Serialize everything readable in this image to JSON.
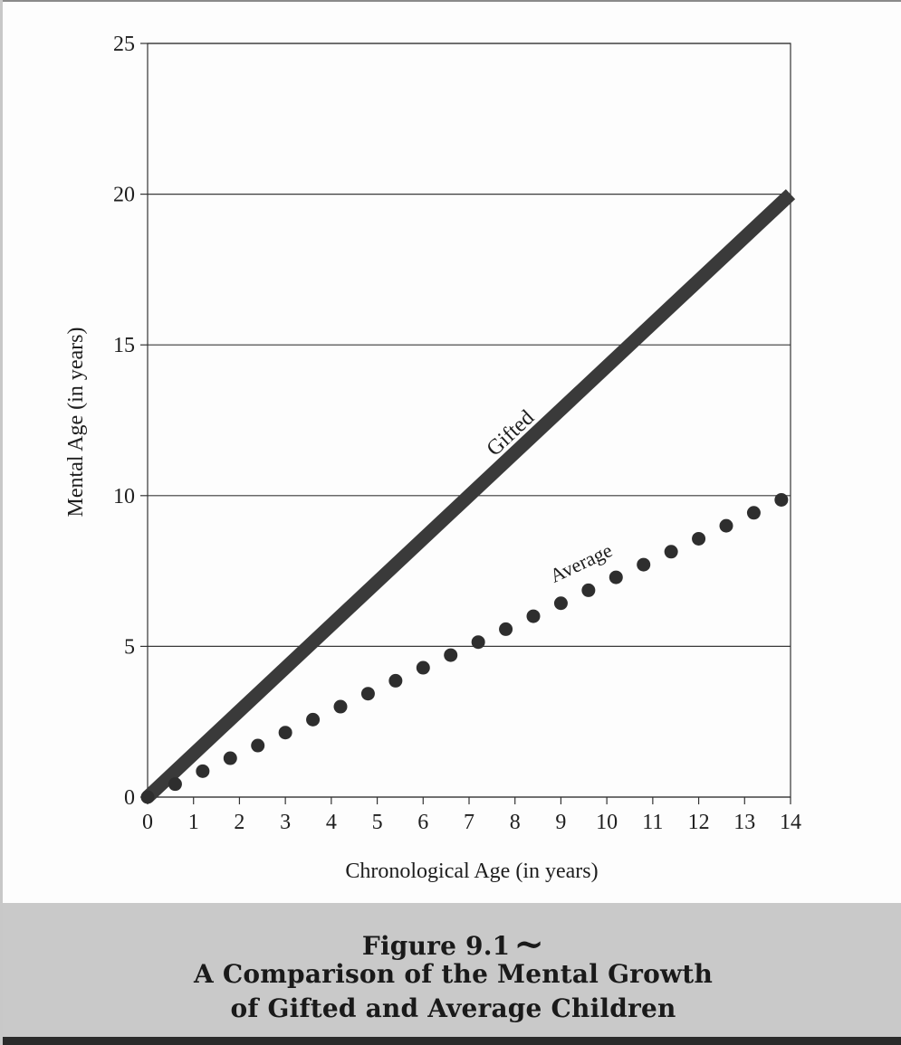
{
  "chart_data": {
    "type": "line",
    "title": "",
    "xlabel": "Chronological Age (in years)",
    "ylabel": "Mental Age (in years)",
    "xlim": [
      0,
      14
    ],
    "ylim": [
      0,
      25
    ],
    "x_ticks": [
      "0",
      "1",
      "2",
      "3",
      "4",
      "5",
      "6",
      "7",
      "8",
      "9",
      "10",
      "11",
      "12",
      "13",
      "14"
    ],
    "y_ticks": [
      "0",
      "5",
      "10",
      "15",
      "20",
      "25"
    ],
    "grid": "horizontal",
    "legend": "none",
    "series": [
      {
        "name": "Gifted",
        "style": "thick-solid",
        "color": "#3a3a3a",
        "x": [
          0,
          14
        ],
        "y": [
          0,
          20
        ]
      },
      {
        "name": "Average",
        "style": "dotted",
        "color": "#2e2e2e",
        "x": [
          0.0,
          0.6,
          1.2,
          1.8,
          2.4,
          3.0,
          3.6,
          4.2,
          4.8,
          5.4,
          6.0,
          6.6,
          7.2,
          7.8,
          8.4,
          9.0,
          9.6,
          10.2,
          10.8,
          11.4,
          12.0,
          12.6,
          13.2,
          13.8
        ],
        "y": [
          0.0,
          0.43,
          0.86,
          1.29,
          1.71,
          2.14,
          2.57,
          3.0,
          3.43,
          3.86,
          4.29,
          4.71,
          5.14,
          5.57,
          6.0,
          6.43,
          6.86,
          7.29,
          7.71,
          8.14,
          8.57,
          9.0,
          9.43,
          9.86
        ]
      }
    ]
  },
  "caption": {
    "figure_label": "Figure 9.1",
    "tilde": "~",
    "line1": "A Comparison of the Mental Growth",
    "line2": "of Gifted and Average Children"
  }
}
